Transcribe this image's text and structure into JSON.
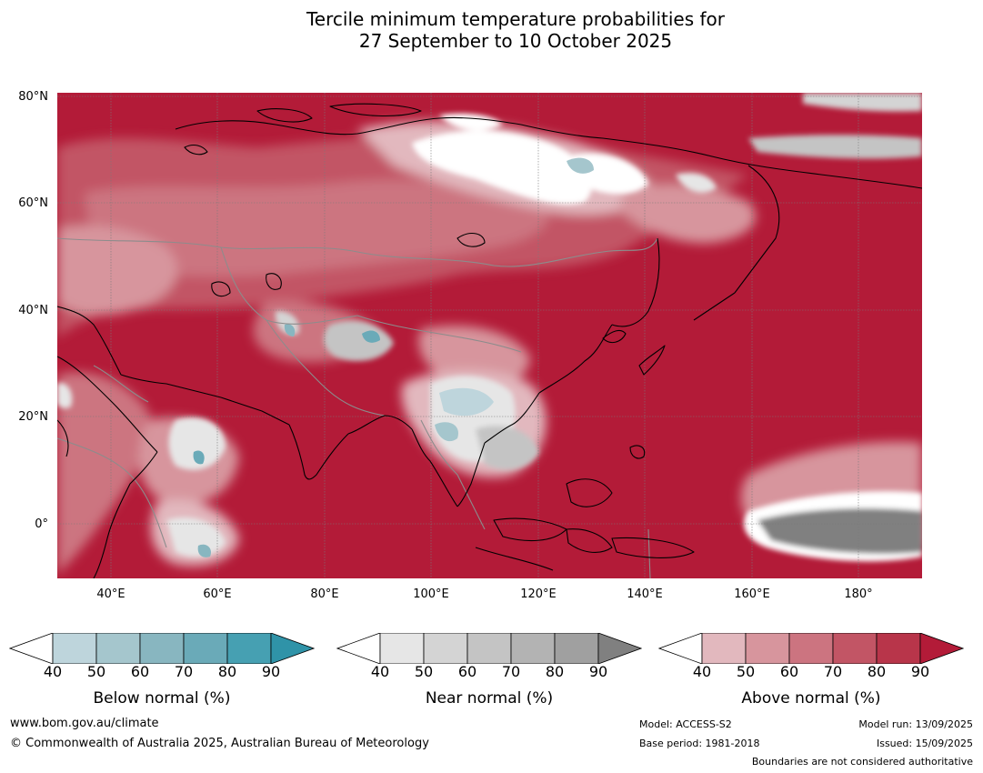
{
  "title_line1": "Tercile minimum temperature probabilities for",
  "title_line2": "27 September to 10 October 2025",
  "map": {
    "lat_labels": [
      "80°N",
      "60°N",
      "40°N",
      "20°N",
      "0°"
    ],
    "lon_labels": [
      "40°E",
      "60°E",
      "80°E",
      "100°E",
      "120°E",
      "140°E",
      "160°E",
      "180°"
    ],
    "colors": {
      "above_dominant": "#b31b38",
      "land_border": "#000000",
      "country_border": "#8c8c8c"
    }
  },
  "legends": [
    {
      "title": "Below normal (%)",
      "ticks": [
        "40",
        "50",
        "60",
        "70",
        "80",
        "90"
      ],
      "colors": [
        "#ffffff",
        "#bed5dc",
        "#a5c6cd",
        "#88b6c0",
        "#6aaab8",
        "#46a0b2",
        "#2f93a8"
      ]
    },
    {
      "title": "Near normal (%)",
      "ticks": [
        "40",
        "50",
        "60",
        "70",
        "80",
        "90"
      ],
      "colors": [
        "#ffffff",
        "#e6e6e6",
        "#d4d4d4",
        "#c4c4c4",
        "#b3b3b3",
        "#a0a0a0",
        "#808080"
      ]
    },
    {
      "title": "Above normal (%)",
      "ticks": [
        "40",
        "50",
        "60",
        "70",
        "80",
        "90"
      ],
      "colors": [
        "#ffffff",
        "#e2b8be",
        "#d7959d",
        "#cc7480",
        "#c25565",
        "#b8354a",
        "#b31b38"
      ]
    }
  ],
  "footer": {
    "website": "www.bom.gov.au/climate",
    "copyright": "© Commonwealth of Australia 2025, Australian Bureau of Meteorology",
    "model": "Model: ACCESS-S2",
    "base_period": "Base period: 1981-2018",
    "model_run": "Model run: 13/09/2025",
    "issued": "Issued: 15/09/2025",
    "disclaimer": "Boundaries are not considered authoritative"
  }
}
